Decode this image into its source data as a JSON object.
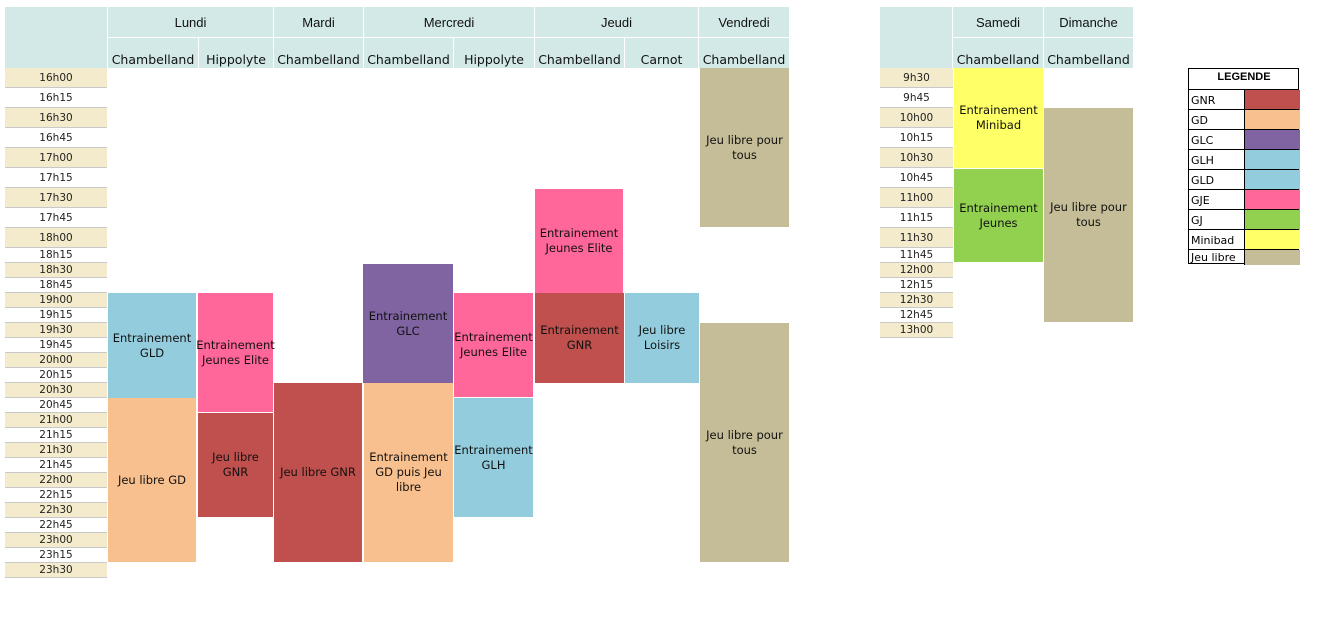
{
  "colors": {
    "header": "#d2e9e7",
    "time_beige": "#f3ebcb",
    "GNR": "#c0504d",
    "GD": "#f8c08e",
    "GLC": "#8064a2",
    "GLH": "#93cddd",
    "GLD": "#93cddd",
    "GJE": "#ff6699",
    "GJ": "#92d050",
    "Minibad": "#ffff66",
    "Jeu libre": "#c4bd97"
  },
  "week": {
    "days": [
      "Lundi",
      "Mardi",
      "Mercredi",
      "Jeudi",
      "Vendredi"
    ],
    "venues": [
      "Chambelland",
      "Hippolyte",
      "Chambelland",
      "Chambelland",
      "Hippolyte",
      "Chambelland",
      "Carnot",
      "Chambelland"
    ],
    "times": [
      "16h00",
      "16h15",
      "16h30",
      "16h45",
      "17h00",
      "17h15",
      "17h30",
      "17h45",
      "18h00",
      "18h15",
      "18h30",
      "18h45",
      "19h00",
      "19h15",
      "19h30",
      "19h45",
      "20h00",
      "20h15",
      "20h30",
      "20h45",
      "21h00",
      "21h15",
      "21h30",
      "21h45",
      "22h00",
      "22h15",
      "22h30",
      "22h45",
      "23h00",
      "23h15",
      "23h30"
    ]
  },
  "weekend": {
    "days": [
      "Samedi",
      "Dimanche"
    ],
    "venues": [
      "Chambelland",
      "Chambelland"
    ],
    "times": [
      "9h30",
      "9h45",
      "10h00",
      "10h15",
      "10h30",
      "10h45",
      "11h00",
      "11h15",
      "11h30",
      "11h45",
      "12h00",
      "12h15",
      "12h30",
      "12h45",
      "13h00"
    ]
  },
  "blocks": [
    {
      "text": "Jeu libre pour tous",
      "type": "Jeu libre"
    },
    {
      "text": "Entrainement Jeunes Elite",
      "type": "GJE"
    },
    {
      "text": "Entrainement GLC",
      "type": "GLC"
    },
    {
      "text": "Entrainement GLD",
      "type": "GLD"
    },
    {
      "text": "Entrainement Jeunes Elite",
      "type": "GJE"
    },
    {
      "text": "Entrainement Jeunes Elite",
      "type": "GJE"
    },
    {
      "text": "Entrainement GNR",
      "type": "GNR"
    },
    {
      "text": "Jeu libre Loisirs",
      "type": "GLH"
    },
    {
      "text": "Jeu libre pour tous",
      "type": "Jeu libre"
    },
    {
      "text": "Jeu libre GD",
      "type": "GD"
    },
    {
      "text": "Jeu libre GNR",
      "type": "GNR"
    },
    {
      "text": "Jeu libre GNR",
      "type": "GNR"
    },
    {
      "text": "Entrainement GD puis Jeu libre",
      "type": "GD"
    },
    {
      "text": "Entrainement GLH",
      "type": "GLH"
    },
    {
      "text": "Entrainement Minibad",
      "type": "Minibad"
    },
    {
      "text": "Entrainement Jeunes",
      "type": "GJ"
    },
    {
      "text": "Jeu libre pour tous",
      "type": "Jeu libre"
    }
  ],
  "legend": {
    "title": "LEGENDE",
    "items": [
      "GNR",
      "GD",
      "GLC",
      "GLH",
      "GLD",
      "GJE",
      "GJ",
      "Minibad",
      "Jeu libre"
    ]
  }
}
